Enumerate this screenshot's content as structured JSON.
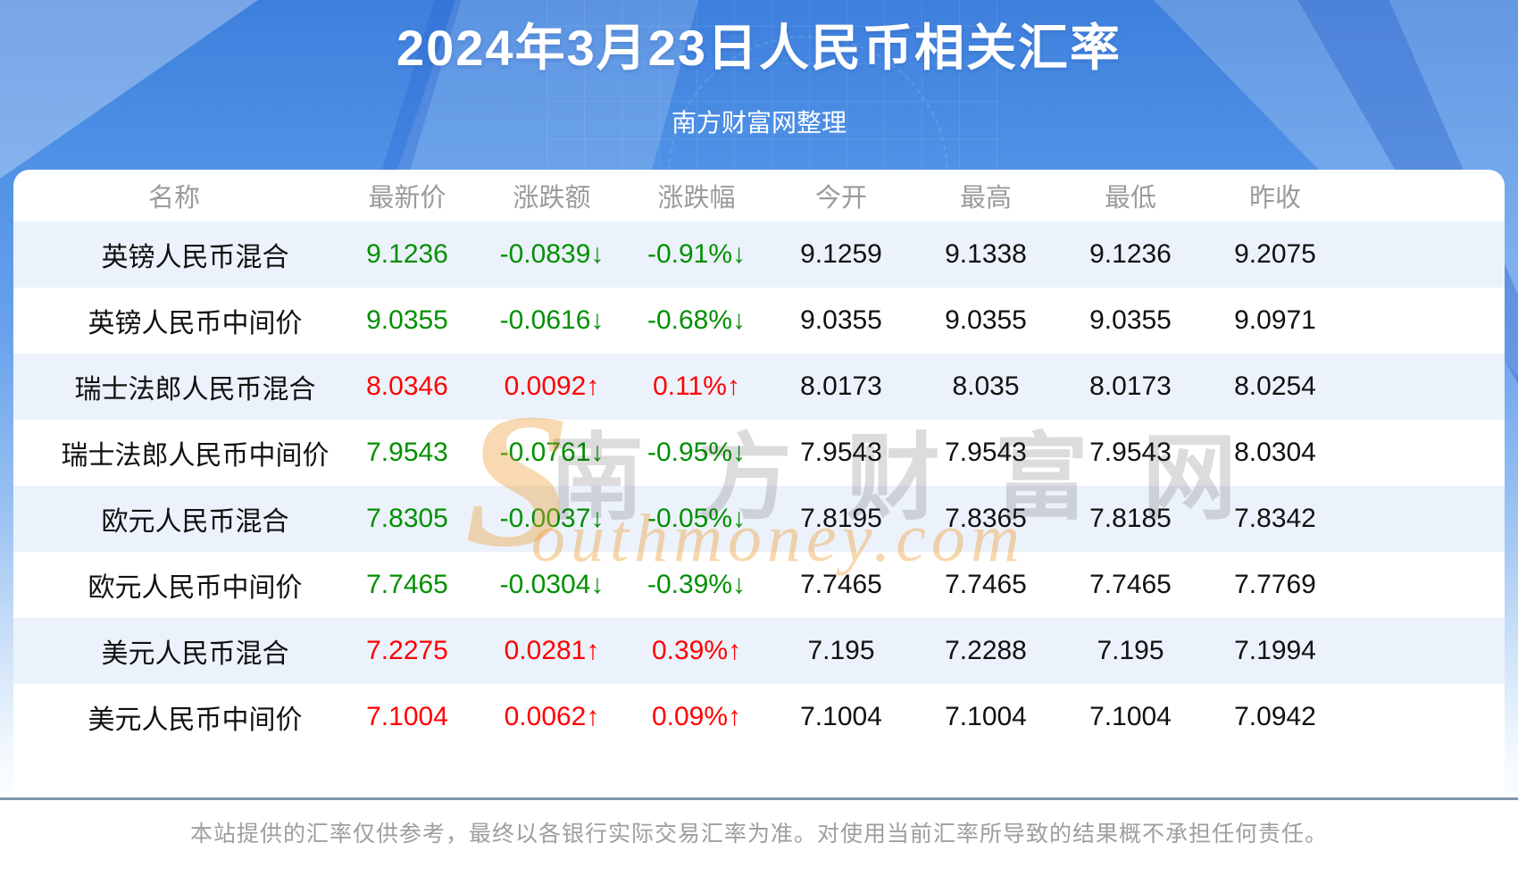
{
  "header": {
    "title": "2024年3月23日人民币相关汇率",
    "subtitle": "南方财富网整理"
  },
  "table": {
    "columns": [
      "名称",
      "最新价",
      "涨跌额",
      "涨跌幅",
      "今开",
      "最高",
      "最低",
      "昨收"
    ],
    "rows": [
      {
        "name": "英镑人民币混合",
        "latest": "9.1236",
        "change": "-0.0839",
        "pct": "-0.91%",
        "dir": "down",
        "open": "9.1259",
        "high": "9.1338",
        "low": "9.1236",
        "prev": "9.2075"
      },
      {
        "name": "英镑人民币中间价",
        "latest": "9.0355",
        "change": "-0.0616",
        "pct": "-0.68%",
        "dir": "down",
        "open": "9.0355",
        "high": "9.0355",
        "low": "9.0355",
        "prev": "9.0971"
      },
      {
        "name": "瑞士法郎人民币混合",
        "latest": "8.0346",
        "change": "0.0092",
        "pct": "0.11%",
        "dir": "up",
        "open": "8.0173",
        "high": "8.035",
        "low": "8.0173",
        "prev": "8.0254"
      },
      {
        "name": "瑞士法郎人民币中间价",
        "latest": "7.9543",
        "change": "-0.0761",
        "pct": "-0.95%",
        "dir": "down",
        "open": "7.9543",
        "high": "7.9543",
        "low": "7.9543",
        "prev": "8.0304"
      },
      {
        "name": "欧元人民币混合",
        "latest": "7.8305",
        "change": "-0.0037",
        "pct": "-0.05%",
        "dir": "down",
        "open": "7.8195",
        "high": "7.8365",
        "low": "7.8185",
        "prev": "7.8342"
      },
      {
        "name": "欧元人民币中间价",
        "latest": "7.7465",
        "change": "-0.0304",
        "pct": "-0.39%",
        "dir": "down",
        "open": "7.7465",
        "high": "7.7465",
        "low": "7.7465",
        "prev": "7.7769"
      },
      {
        "name": "美元人民币混合",
        "latest": "7.2275",
        "change": "0.0281",
        "pct": "0.39%",
        "dir": "up",
        "open": "7.195",
        "high": "7.2288",
        "low": "7.195",
        "prev": "7.1994"
      },
      {
        "name": "美元人民币中间价",
        "latest": "7.1004",
        "change": "0.0062",
        "pct": "0.09%",
        "dir": "up",
        "open": "7.1004",
        "high": "7.1004",
        "low": "7.1004",
        "prev": "7.0942"
      }
    ]
  },
  "arrows": {
    "up": "↑",
    "down": "↓"
  },
  "watermark": {
    "s": "S",
    "en": "outhmoney.com",
    "cn": "南方财富网"
  },
  "footer": {
    "disclaimer": "本站提供的汇率仅供参考，最终以各银行实际交易汇率为准。对使用当前汇率所导致的结果概不承担任何责任。"
  },
  "colors": {
    "up": "#ff0000",
    "down": "#009000",
    "header_text": "#9b9b9b",
    "row_alt": "#ecf2fb",
    "divider": "#8195aa",
    "accent_blue": "#4a90e8"
  }
}
